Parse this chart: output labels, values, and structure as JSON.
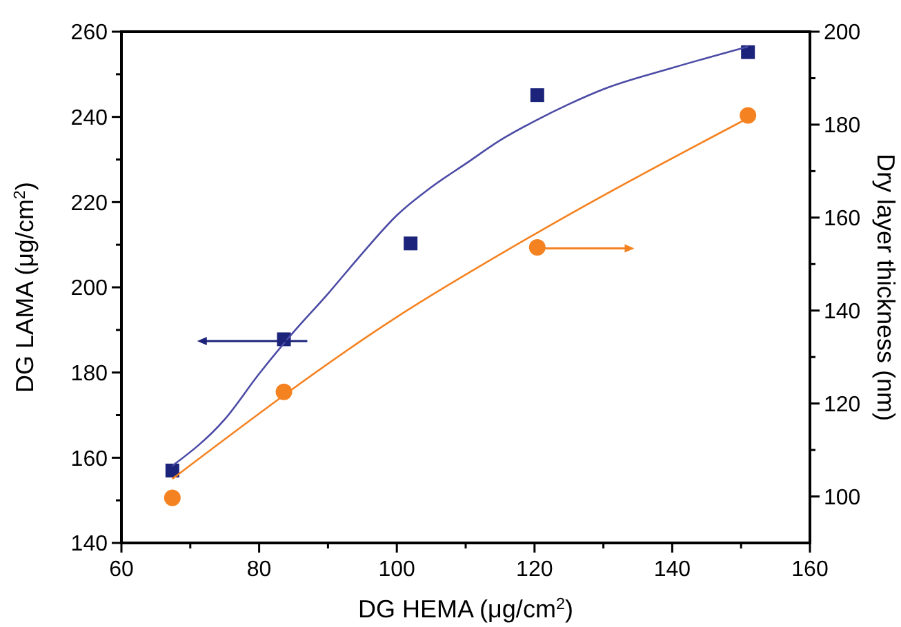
{
  "chart_data": {
    "type": "scatter",
    "xlabel": "DG HEMA (μg/cm$^{2}$)",
    "ylabel": "DG LAMA (μg/cm$^{2}$)",
    "y2label": "Dry layer thickness (nm)",
    "xlim": [
      60,
      160
    ],
    "xticks": [
      60,
      {
        "value": 70,
        "label": null
      },
      80,
      {
        "value": 90,
        "label": null
      },
      100,
      {
        "value": 110,
        "label": null
      },
      120,
      {
        "value": 130,
        "label": null
      },
      140,
      {
        "value": 150,
        "label": null
      },
      160
    ],
    "ylim": [
      140,
      260
    ],
    "yticks": [
      140,
      {
        "value": 150,
        "label": null
      },
      160,
      {
        "value": 170,
        "label": null
      },
      180,
      {
        "value": 190,
        "label": null
      },
      200,
      {
        "value": 210,
        "label": null
      },
      220,
      {
        "value": 230,
        "label": null
      },
      240,
      {
        "value": 250,
        "label": null
      },
      260
    ],
    "y2lim": [
      90,
      200
    ],
    "y2ticks": [
      100,
      {
        "value": 110,
        "label": null
      },
      120,
      {
        "value": 130,
        "label": null
      },
      140,
      {
        "value": 150,
        "label": null
      },
      160,
      {
        "value": 170,
        "label": null
      },
      180,
      {
        "value": 190,
        "label": null
      },
      200
    ],
    "grid": false,
    "series": [
      {
        "color": "#1c237a",
        "marker": "square",
        "axis": "y",
        "x": [
          67.4,
          83.6,
          102.0,
          120.4,
          151.0
        ],
        "values": [
          157,
          187.8,
          210.3,
          245.1,
          255.2
        ]
      },
      {
        "type": "line",
        "color": "#4b4ba6",
        "marker": "none",
        "axis": "y",
        "x": [
          67.4,
          75,
          80,
          85,
          90,
          95,
          100,
          105,
          110,
          115,
          120,
          125,
          130,
          140,
          151
        ],
        "values": [
          158.1,
          169,
          179.7,
          189.5,
          198.5,
          208,
          216.9,
          223.5,
          229,
          234.5,
          239,
          243,
          246.5,
          251.5,
          256.5
        ]
      },
      {
        "color": "#f58220",
        "marker": "circle",
        "axis": "y2",
        "x": [
          67.4,
          83.6,
          120.4,
          151.0
        ],
        "values": [
          99.7,
          122.5,
          153.6,
          182.0
        ]
      },
      {
        "type": "line",
        "color": "#f58220",
        "marker": "none",
        "axis": "y2",
        "x": [
          67.4,
          100,
          120,
          151
        ],
        "values": [
          103.8,
          138.6,
          156.4,
          181.4
        ]
      }
    ]
  }
}
